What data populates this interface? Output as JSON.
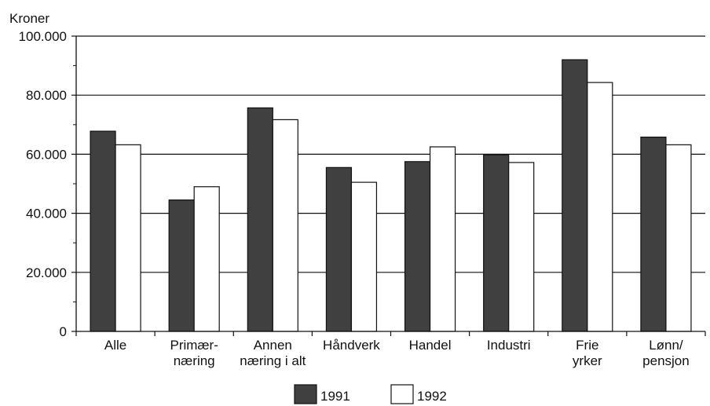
{
  "chart_data": {
    "type": "bar",
    "y_unit_label": "Kroner",
    "categories": [
      [
        "Alle"
      ],
      [
        "Primær-",
        "næring"
      ],
      [
        "Annen",
        "næring i alt"
      ],
      [
        "Håndverk"
      ],
      [
        "Handel"
      ],
      [
        "Industri"
      ],
      [
        "Frie",
        "yrker"
      ],
      [
        "Lønn/",
        "pensjon"
      ]
    ],
    "series": [
      {
        "name": "1991",
        "color": "#404040",
        "values": [
          67800,
          44500,
          75700,
          55500,
          57500,
          59800,
          92000,
          65800
        ]
      },
      {
        "name": "1992",
        "color": "#ffffff",
        "values": [
          63200,
          49000,
          71700,
          50500,
          62500,
          57200,
          84300,
          63200
        ]
      }
    ],
    "ylim": [
      0,
      100000
    ],
    "yticks": [
      0,
      20000,
      40000,
      60000,
      80000,
      100000
    ],
    "ytick_labels": [
      "0",
      "20.000",
      "40.000",
      "60.000",
      "80.000",
      "100.000"
    ],
    "grid": true,
    "legend_position": "bottom-center"
  }
}
